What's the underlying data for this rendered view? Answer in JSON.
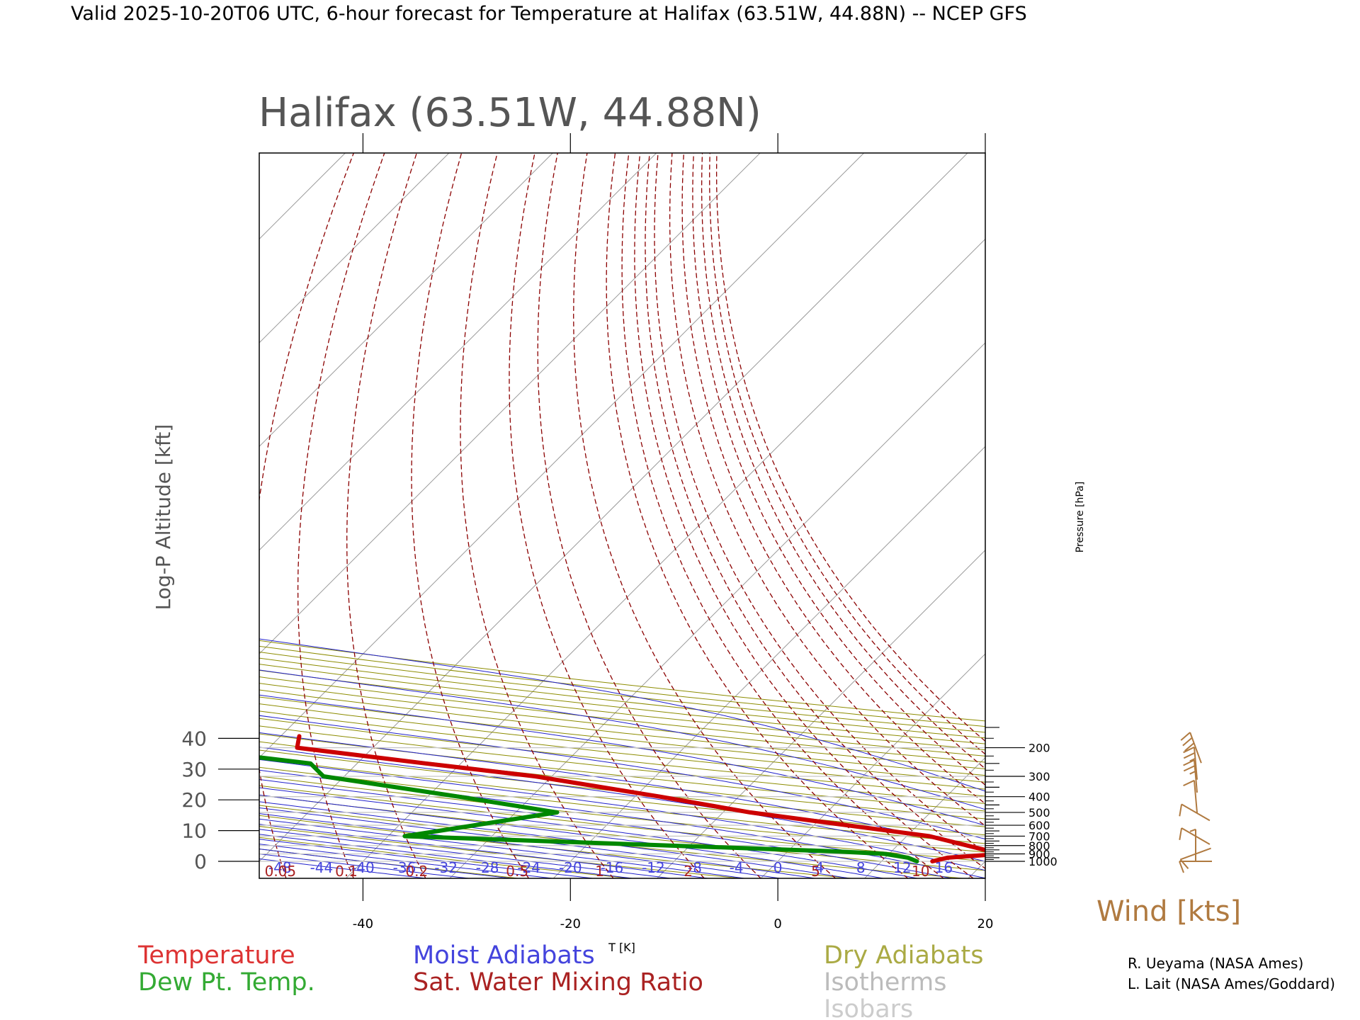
{
  "header": {
    "title": "Valid 2025-10-20T06 UTC, 6-hour forecast for Temperature at Halifax (63.51W, 44.88N) -- NCEP GFS"
  },
  "chart_data": {
    "type": "line",
    "title": "Halifax (63.51W, 44.88N)",
    "xlabel": "T [K]",
    "ylabel": "Log-P Altitude [kft]",
    "right_axis_label": "Pressure [hPa]",
    "xlim": [
      -50,
      20
    ],
    "x_ticks": [
      -40,
      -20,
      0,
      20
    ],
    "y_ticks": [
      0,
      10,
      20,
      30,
      40
    ],
    "pressure_levels": [
      1000,
      900,
      800,
      700,
      600,
      500,
      400,
      300,
      200
    ],
    "series": [
      {
        "name": "Temperature",
        "color": "#cc0000",
        "points": [
          {
            "p": 1000,
            "t": 14.9
          },
          {
            "p": 950,
            "t": 16.0
          },
          {
            "p": 900,
            "t": 20.8
          },
          {
            "p": 700,
            "t": 12.2
          },
          {
            "p": 500,
            "t": -7.4
          },
          {
            "p": 400,
            "t": -17.6
          },
          {
            "p": 300,
            "t": -31.6
          },
          {
            "p": 250,
            "t": -43.4
          },
          {
            "p": 200,
            "t": -57.3
          },
          {
            "p": 170,
            "t": -58.2
          }
        ]
      },
      {
        "name": "Dew Pt. Temp.",
        "color": "#008800",
        "points": [
          {
            "p": 1000,
            "t": 13.4
          },
          {
            "p": 950,
            "t": 12.2
          },
          {
            "p": 900,
            "t": 9.6
          },
          {
            "p": 870,
            "t": 4.9
          },
          {
            "p": 700,
            "t": -38.4
          },
          {
            "p": 500,
            "t": -26.0
          },
          {
            "p": 400,
            "t": -37.0
          },
          {
            "p": 300,
            "t": -52.0
          },
          {
            "p": 250,
            "t": -54.5
          },
          {
            "p": 200,
            "t": -68.9
          },
          {
            "p": 170,
            "t": -82.0
          }
        ]
      }
    ],
    "moist_adiabat_labels": [
      "-48",
      "-44",
      "-40",
      "-36",
      "-32",
      "-28",
      "-24",
      "-20",
      "-16",
      "-12",
      "-8",
      "-4",
      "0",
      "4",
      "8",
      "12",
      "16"
    ],
    "mixing_ratio_labels": [
      "0.05",
      "0.1",
      "0.2",
      "0.5",
      "1",
      "2",
      "5",
      "10"
    ],
    "wind": {
      "label": "Wind [kts]",
      "barbs": [
        {
          "p": 1000,
          "direction": 270,
          "speed": 10
        },
        {
          "p": 900,
          "direction": 250,
          "speed": 10
        },
        {
          "p": 800,
          "direction": 360,
          "speed": 5
        },
        {
          "p": 700,
          "direction": 300,
          "speed": 10
        },
        {
          "p": 500,
          "direction": 300,
          "speed": 10
        },
        {
          "p": 400,
          "direction": 355,
          "speed": 10
        },
        {
          "p": 300,
          "direction": 355,
          "speed": 25
        },
        {
          "p": 250,
          "direction": 355,
          "speed": 25
        },
        {
          "p": 200,
          "direction": 340,
          "speed": 30
        }
      ]
    },
    "legend": [
      {
        "label": "Temperature",
        "color": "#dd3333"
      },
      {
        "label": "Dew Pt. Temp.",
        "color": "#33aa33"
      },
      {
        "label": "Moist Adiabats",
        "color": "#4444dd"
      },
      {
        "label": "Sat. Water Mixing Ratio",
        "color": "#aa2222"
      },
      {
        "label": "Dry Adiabats",
        "color": "#aaaa44"
      },
      {
        "label": "Isotherms",
        "color": "#bbbbbb"
      },
      {
        "label": "Isobars",
        "color": "#cccccc"
      }
    ],
    "credits": [
      "R. Ueyama (NASA Ames)",
      "L. Lait (NASA Ames/Goddard)"
    ],
    "grid": true
  }
}
